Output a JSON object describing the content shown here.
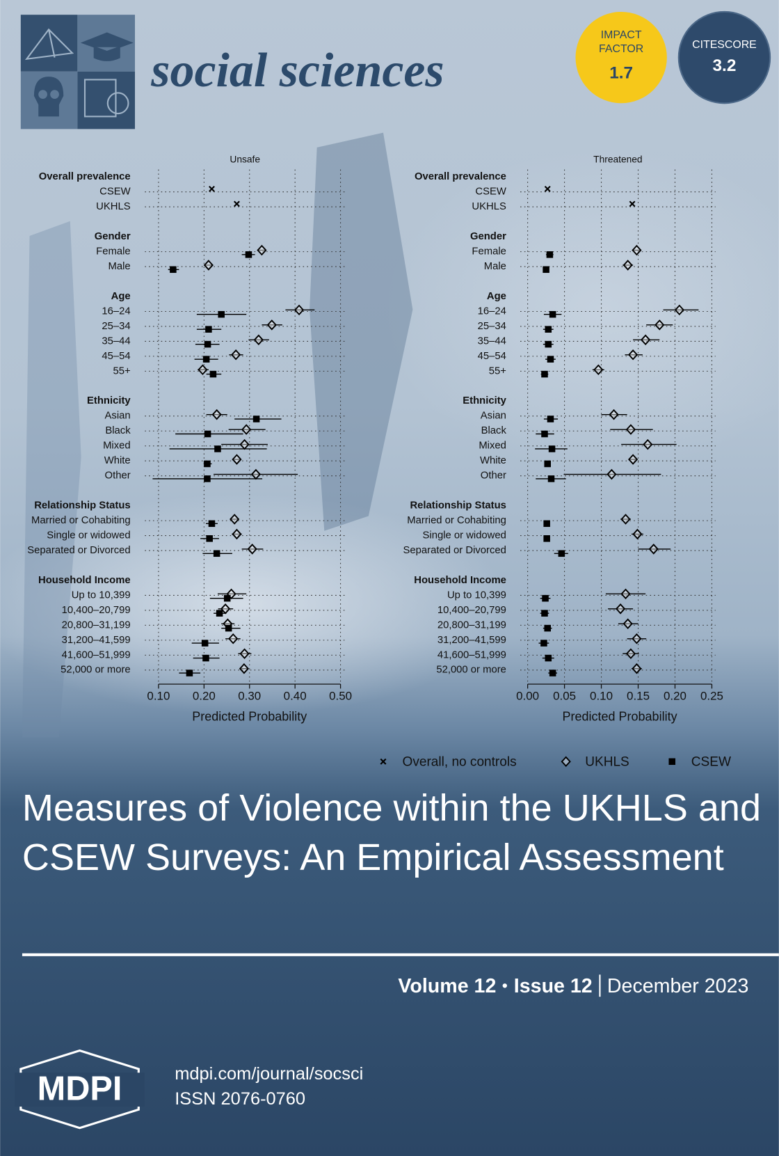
{
  "journal": {
    "name": "social sciences",
    "impact_factor": {
      "label": "IMPACT FACTOR",
      "value": "1.7"
    },
    "citescore": {
      "label": "CITESCORE",
      "value": "3.2"
    }
  },
  "chart_data": [
    {
      "type": "dot",
      "title": "Unsafe",
      "xlabel": "Predicted Probability",
      "xlim": [
        0.07,
        0.51
      ],
      "xticks": [
        {
          "value": 0.1,
          "label": "0.10"
        },
        {
          "value": 0.2,
          "label": "0.20"
        },
        {
          "value": 0.3,
          "label": "0.30"
        },
        {
          "value": 0.4,
          "label": "0.40"
        },
        {
          "value": 0.5,
          "label": "0.50"
        }
      ],
      "grid": true,
      "legend": "bottom",
      "categories": [
        "Overall prevalence",
        "CSEW",
        "UKHLS",
        "Gender",
        "Female",
        "Male",
        "Age",
        "16–24",
        "25–34",
        "35–44",
        "45–54",
        "55+",
        "Ethnicity",
        "Asian",
        "Black",
        "Mixed",
        "White",
        "Other",
        "Relationship Status",
        "Married or Cohabiting",
        "Single or widowed",
        "Separated or Divorced",
        "Household Income",
        "Up to 10,399",
        "10,400–20,799",
        "20,800–31,199",
        "31,200–41,599",
        "41,600–51,999",
        "52,000 or more"
      ],
      "series": [
        {
          "name": "Overall, no controls",
          "marker": "x",
          "color": "#000000",
          "values": [
            null,
            0.217,
            0.272,
            null,
            null,
            null,
            null,
            null,
            null,
            null,
            null,
            null,
            null,
            null,
            null,
            null,
            null,
            null,
            null,
            null,
            null,
            null,
            null,
            null,
            null,
            null,
            null,
            null,
            null
          ]
        },
        {
          "name": "UKHLS",
          "marker": "diamond",
          "color": "#000000",
          "values": [
            null,
            null,
            null,
            null,
            0.327,
            0.21,
            null,
            0.409,
            0.349,
            0.32,
            0.27,
            0.197,
            null,
            0.228,
            0.293,
            0.289,
            0.272,
            0.314,
            null,
            0.267,
            0.272,
            0.306,
            null,
            0.26,
            0.247,
            0.252,
            0.264,
            0.289,
            0.288
          ],
          "lower": [
            null,
            null,
            null,
            null,
            0.32,
            0.203,
            null,
            0.379,
            0.327,
            0.298,
            0.255,
            0.186,
            null,
            0.205,
            0.254,
            0.238,
            0.264,
            0.221,
            null,
            0.259,
            0.261,
            0.283,
            null,
            0.23,
            0.231,
            0.238,
            0.247,
            0.275,
            0.279
          ],
          "upper": [
            null,
            null,
            null,
            null,
            0.334,
            0.217,
            null,
            0.443,
            0.372,
            0.343,
            0.286,
            0.21,
            null,
            0.251,
            0.335,
            0.34,
            0.281,
            0.406,
            null,
            0.275,
            0.283,
            0.33,
            null,
            0.293,
            0.264,
            0.267,
            0.28,
            0.304,
            0.298
          ]
        },
        {
          "name": "CSEW",
          "marker": "square",
          "color": "#000000",
          "values": [
            null,
            null,
            null,
            null,
            0.298,
            0.132,
            null,
            0.238,
            0.21,
            0.208,
            0.205,
            0.22,
            null,
            0.315,
            0.208,
            0.23,
            0.207,
            0.207,
            null,
            0.217,
            0.212,
            0.228,
            null,
            0.251,
            0.234,
            0.254,
            0.202,
            0.204,
            0.168
          ],
          "lower": [
            null,
            null,
            null,
            null,
            0.283,
            0.121,
            null,
            0.184,
            0.184,
            0.181,
            0.179,
            0.205,
            null,
            0.267,
            0.137,
            0.124,
            0.199,
            0.087,
            null,
            0.204,
            0.192,
            0.197,
            null,
            0.213,
            0.221,
            0.238,
            0.173,
            0.176,
            0.145
          ],
          "upper": [
            null,
            null,
            null,
            null,
            0.312,
            0.145,
            null,
            0.293,
            0.238,
            0.234,
            0.231,
            0.238,
            null,
            0.37,
            0.286,
            0.338,
            0.217,
            0.328,
            null,
            0.23,
            0.233,
            0.262,
            null,
            0.286,
            0.249,
            0.28,
            0.233,
            0.234,
            0.192
          ]
        }
      ]
    },
    {
      "type": "dot",
      "title": "Threatened",
      "xlabel": "Predicted Probability",
      "xlim": [
        -0.01,
        0.255
      ],
      "xticks": [
        {
          "value": 0,
          "label": "0.00"
        },
        {
          "value": 0.05,
          "label": "0.05"
        },
        {
          "value": 0.1,
          "label": "0.10"
        },
        {
          "value": 0.15,
          "label": "0.15"
        },
        {
          "value": 0.2,
          "label": "0.20"
        },
        {
          "value": 0.25,
          "label": "0.25"
        }
      ],
      "grid": true,
      "categories": [
        "Overall prevalence",
        "CSEW",
        "UKHLS",
        "Gender",
        "Female",
        "Male",
        "Age",
        "16–24",
        "25–34",
        "35–44",
        "45–54",
        "55+",
        "Ethnicity",
        "Asian",
        "Black",
        "Mixed",
        "White",
        "Other",
        "Relationship Status",
        "Married or Cohabiting",
        "Single or widowed",
        "Separated or Divorced",
        "Household Income",
        "Up to 10,399",
        "10,400–20,799",
        "20,800–31,199",
        "31,200–41,599",
        "41,600–51,999",
        "52,000 or more"
      ],
      "series": [
        {
          "marker": "x",
          "color": "#000000",
          "values": [
            null,
            0.027,
            0.142,
            null,
            null,
            null,
            null,
            null,
            null,
            null,
            null,
            null,
            null,
            null,
            null,
            null,
            null,
            null,
            null,
            null,
            null,
            null,
            null,
            null,
            null,
            null,
            null,
            null,
            null
          ]
        },
        {
          "marker": "diamond",
          "color": "#000000",
          "values": [
            null,
            null,
            null,
            null,
            0.148,
            0.136,
            null,
            0.206,
            0.179,
            0.16,
            0.143,
            0.096,
            null,
            0.117,
            0.14,
            0.163,
            0.143,
            0.114,
            null,
            0.133,
            0.149,
            0.171,
            null,
            0.133,
            0.126,
            0.136,
            0.148,
            0.14,
            0.148
          ],
          "lower": [
            null,
            null,
            null,
            null,
            0.142,
            0.129,
            null,
            0.184,
            0.161,
            0.143,
            0.132,
            0.088,
            null,
            0.1,
            0.112,
            0.127,
            0.137,
            0.049,
            null,
            0.126,
            0.141,
            0.15,
            null,
            0.106,
            0.109,
            0.123,
            0.135,
            0.129,
            0.141
          ],
          "upper": [
            null,
            null,
            null,
            null,
            0.154,
            0.143,
            null,
            0.232,
            0.197,
            0.179,
            0.156,
            0.104,
            null,
            0.135,
            0.17,
            0.202,
            0.149,
            0.181,
            null,
            0.14,
            0.157,
            0.194,
            null,
            0.16,
            0.143,
            0.15,
            0.161,
            0.151,
            0.155
          ]
        },
        {
          "marker": "square",
          "color": "#000000",
          "values": [
            null,
            null,
            null,
            null,
            0.03,
            0.025,
            null,
            0.034,
            0.028,
            0.028,
            0.031,
            0.023,
            null,
            0.031,
            0.023,
            0.033,
            0.027,
            0.032,
            null,
            0.026,
            0.026,
            0.046,
            null,
            0.024,
            0.023,
            0.027,
            0.022,
            0.028,
            0.034
          ],
          "lower": [
            null,
            null,
            null,
            null,
            0.025,
            0.021,
            null,
            0.022,
            0.021,
            0.021,
            0.024,
            0.018,
            null,
            0.022,
            0.011,
            0.01,
            0.024,
            0.011,
            null,
            0.023,
            0.023,
            0.036,
            null,
            0.017,
            0.017,
            0.021,
            0.015,
            0.02,
            0.028
          ],
          "upper": [
            null,
            null,
            null,
            null,
            0.035,
            0.029,
            null,
            0.046,
            0.035,
            0.035,
            0.038,
            0.028,
            null,
            0.041,
            0.036,
            0.054,
            0.03,
            0.052,
            null,
            0.03,
            0.03,
            0.055,
            null,
            0.031,
            0.029,
            0.033,
            0.029,
            0.036,
            0.04
          ]
        }
      ]
    }
  ],
  "article": {
    "title": "Measures of Violence within the UKHLS and CSEW Surveys: An Empirical Assessment"
  },
  "issue": {
    "volume": "Volume 12",
    "issue": "Issue 12",
    "date": "December 2023"
  },
  "publisher": {
    "logo": "MDPI",
    "url": "mdpi.com/journal/socsci",
    "issn": "ISSN 2076-0760"
  }
}
